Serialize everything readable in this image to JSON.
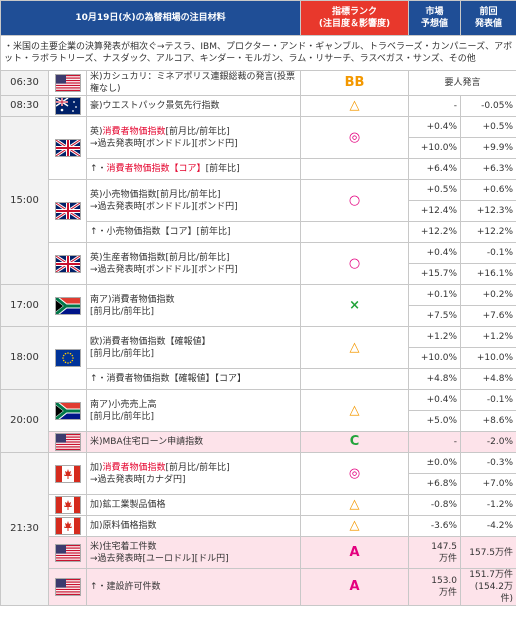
{
  "header": {
    "title": "10月19日(水)の為替相場の注目材料",
    "rank": "指標ランク",
    "rank_sub": "(注目度＆影響度)",
    "forecast": "市場",
    "forecast_sub": "予想値",
    "previous": "前回",
    "previous_sub": "発表値"
  },
  "note": "・米国の主要企業の決算発表が相次ぐ→テスラ、IBM、プロクター・アンド・ギャンブル、トラベラーズ・カンパニーズ、アボット・ラボラトリーズ、ナスダック、アルコア、キンダー・モルガン、ラム・リサーチ、ラスベガス・サンズ、その他",
  "groups": [
    {
      "time": "06:30",
      "items": [
        {
          "lines": [
            [
              {
                "t": "米)カシュカリ：ミネアポリス連銀総裁の発言(投票権なし)"
              }
            ]
          ],
          "rank": "BB",
          "rank_color": "#f39800",
          "merged": "要人発言"
        }
      ]
    },
    {
      "time": "08:30",
      "items": [
        {
          "lines": [
            [
              {
                "t": "豪)ウエストパック景気先行指数"
              }
            ]
          ],
          "rank": "△",
          "rank_color": "#f39800",
          "values": [
            {
              "forecast": "-",
              "previous": "-0.05%"
            }
          ]
        }
      ]
    },
    {
      "time": "15:00",
      "items": [
        {
          "lines": [
            [
              {
                "t": "英)"
              },
              {
                "t": "消費者物価指数",
                "red": true
              },
              {
                "t": "[前月比/前年比]"
              }
            ],
            [
              {
                "t": "→過去発表時[ボンドドル][ボンド円]"
              }
            ]
          ],
          "rank": "◎",
          "rank_color": "#e4007f",
          "values": [
            {
              "forecast": "+0.4%",
              "previous": "+0.5%"
            },
            {
              "forecast": "+10.0%",
              "previous": "+9.9%"
            }
          ],
          "sub": {
            "label": [
              {
                "t": "↑・"
              },
              {
                "t": "消費者物価指数【コア】",
                "red": true
              },
              {
                "t": "[前年比]"
              }
            ],
            "forecast": "+6.4%",
            "previous": "+6.3%"
          }
        },
        {
          "lines": [
            [
              {
                "t": "英)小売物価指数[前月比/前年比]"
              }
            ],
            [
              {
                "t": "→過去発表時[ボンドドル][ボンド円]"
              }
            ]
          ],
          "rank": "○",
          "rank_color": "#e4007f",
          "values": [
            {
              "forecast": "+0.5%",
              "previous": "+0.6%"
            },
            {
              "forecast": "+12.4%",
              "previous": "+12.3%"
            }
          ],
          "sub": {
            "label": [
              {
                "t": "↑・小売物価指数【コア】[前年比]"
              }
            ],
            "forecast": "+12.2%",
            "previous": "+12.2%"
          }
        },
        {
          "lines": [
            [
              {
                "t": "英)生産者物価指数[前月比/前年比]"
              }
            ],
            [
              {
                "t": "→過去発表時[ボンドドル][ボンド円]"
              }
            ]
          ],
          "rank": "○",
          "rank_color": "#e4007f",
          "values": [
            {
              "forecast": "+0.4%",
              "previous": "-0.1%"
            },
            {
              "forecast": "+15.7%",
              "previous": "+16.1%"
            }
          ]
        }
      ]
    },
    {
      "time": "17:00",
      "items": [
        {
          "lines": [
            [
              {
                "t": "南ア)消費者物価指数"
              }
            ],
            [
              {
                "t": "[前月比/前年比]"
              }
            ]
          ],
          "rank": "×",
          "rank_color": "#22a33a",
          "values": [
            {
              "forecast": "+0.1%",
              "previous": "+0.2%"
            },
            {
              "forecast": "+7.5%",
              "previous": "+7.6%"
            }
          ]
        }
      ]
    },
    {
      "time": "18:00",
      "items": [
        {
          "lines": [
            [
              {
                "t": "欧)消費者物価指数【確報値】"
              }
            ],
            [
              {
                "t": "[前月比/前年比]"
              }
            ]
          ],
          "rank": "△",
          "rank_color": "#f39800",
          "values": [
            {
              "forecast": "+1.2%",
              "previous": "+1.2%"
            },
            {
              "forecast": "+10.0%",
              "previous": "+10.0%"
            }
          ],
          "sub": {
            "label": [
              {
                "t": "↑・消費者物価指数【確報値】【コア】"
              }
            ],
            "forecast": "+4.8%",
            "previous": "+4.8%"
          }
        }
      ]
    },
    {
      "time": "20:00",
      "items": [
        {
          "lines": [
            [
              {
                "t": "南ア)小売売上高"
              }
            ],
            [
              {
                "t": "[前月比/前年比]"
              }
            ]
          ],
          "rank": "△",
          "rank_color": "#f39800",
          "values": [
            {
              "forecast": "+0.4%",
              "previous": "-0.1%"
            },
            {
              "forecast": "+5.0%",
              "previous": "+8.6%"
            }
          ]
        },
        {
          "lines": [
            [
              {
                "t": "米)MBA住宅ローン申請指数"
              }
            ]
          ],
          "rank": "C",
          "rank_color": "#22a33a",
          "highlight": true,
          "values": [
            {
              "forecast": "-",
              "previous": "-2.0%"
            }
          ]
        }
      ]
    },
    {
      "time": "21:30",
      "items": [
        {
          "lines": [
            [
              {
                "t": "加)"
              },
              {
                "t": "消費者物価指数",
                "red": true
              },
              {
                "t": "[前月比/前年比]"
              }
            ],
            [
              {
                "t": "→過去発表時[カナダ円]"
              }
            ]
          ],
          "rank": "◎",
          "rank_color": "#e4007f",
          "values": [
            {
              "forecast": "±0.0%",
              "previous": "-0.3%"
            },
            {
              "forecast": "+6.8%",
              "previous": "+7.0%"
            }
          ]
        },
        {
          "lines": [
            [
              {
                "t": "加)鉱工業製品価格"
              }
            ]
          ],
          "rank": "△",
          "rank_color": "#f39800",
          "values": [
            {
              "forecast": "-0.8%",
              "previous": "-1.2%"
            }
          ]
        },
        {
          "lines": [
            [
              {
                "t": "加)原料価格指数"
              }
            ]
          ],
          "rank": "△",
          "rank_color": "#f39800",
          "values": [
            {
              "forecast": "-3.6%",
              "previous": "-4.2%"
            }
          ]
        },
        {
          "lines": [
            [
              {
                "t": "米)住宅着工件数"
              }
            ],
            [
              {
                "t": "→過去発表時[ユーロドル][ドル円]"
              }
            ]
          ],
          "rank": "A",
          "rank_color": "#e4007f",
          "highlight": true,
          "tall": true,
          "values": [
            {
              "forecast": [
                "147.5",
                "万件"
              ],
              "previous": [
                "157.5万件"
              ]
            }
          ]
        },
        {
          "lines": [
            [
              {
                "t": "↑・建設許可件数"
              }
            ]
          ],
          "flag_of": "米",
          "rank": "A",
          "rank_color": "#e4007f",
          "highlight": true,
          "tall": true,
          "values": [
            {
              "forecast": [
                "153.0",
                "万件"
              ],
              "previous": [
                "151.7万件",
                "(154.2万件)"
              ]
            }
          ]
        }
      ]
    }
  ]
}
